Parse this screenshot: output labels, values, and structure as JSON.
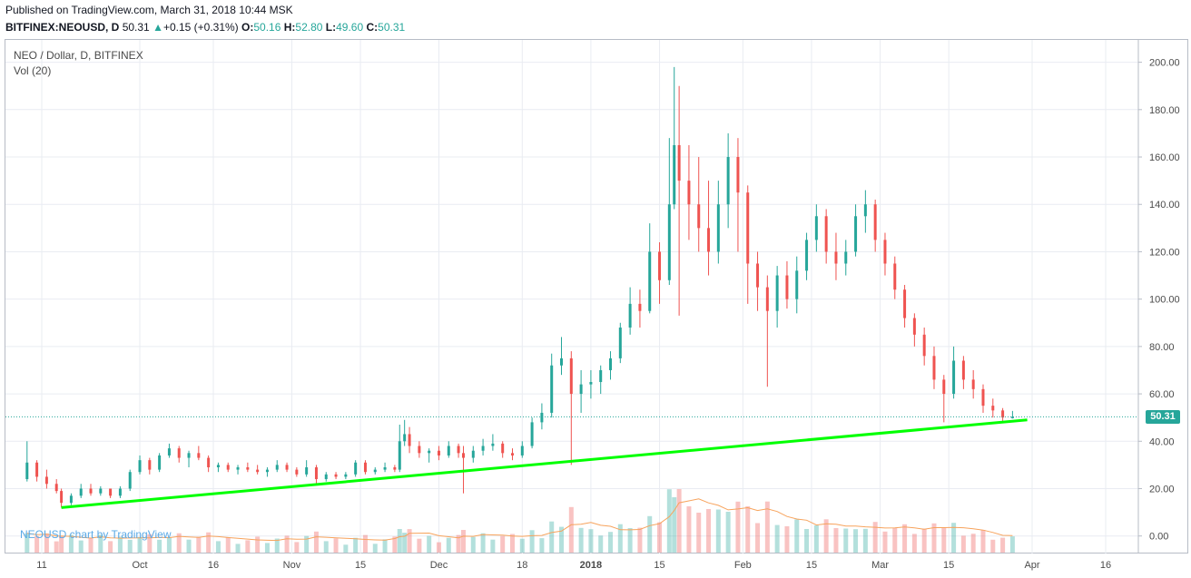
{
  "header": {
    "published": "Published on TradingView.com, March 31, 2018 10:44 MSK",
    "symbol": "BITFINEX:NEOUSD, D",
    "last": "50.31",
    "change_arrow": "▲",
    "change": "+0.15 (+0.31%)",
    "o_label": "O:",
    "o_value": "50.16",
    "h_label": "H:",
    "h_value": "52.80",
    "l_label": "L:",
    "l_value": "49.60",
    "c_label": "C:",
    "c_value": "50.31"
  },
  "legend": {
    "title": "NEO / Dollar, D, BITFINEX",
    "volume": "Vol (20)"
  },
  "watermark": "NEOUSD chart by TradingView",
  "last_price_tag": "50.31",
  "colors": {
    "up": "#26a69a",
    "down": "#ef5350",
    "trendline": "#00ff00",
    "vol_ma": "#f7a35c",
    "grid": "#e9ecf2"
  },
  "chart_data": {
    "type": "candlestick",
    "title": "NEO / Dollar, D, BITFINEX",
    "symbol": "BITFINEX:NEOUSD",
    "interval": "D",
    "y_axis": {
      "ticks": [
        "200.00",
        "180.00",
        "160.00",
        "140.00",
        "120.00",
        "100.00",
        "80.00",
        "60.00",
        "40.00",
        "20.00",
        "0.00"
      ],
      "range": [
        -7,
        208
      ],
      "position": "right"
    },
    "x_axis": {
      "ticks": [
        "11",
        "Oct",
        "16",
        "Nov",
        "15",
        "Dec",
        "18",
        "2018",
        "15",
        "Feb",
        "15",
        "Mar",
        "15",
        "Apr",
        "16"
      ],
      "tick_dates": [
        "2017-09-11",
        "2017-10-01",
        "2017-10-16",
        "2017-11-01",
        "2017-11-15",
        "2017-12-01",
        "2017-12-18",
        "2018-01-01",
        "2018-01-15",
        "2018-02-01",
        "2018-02-15",
        "2018-03-01",
        "2018-03-15",
        "2018-04-01",
        "2018-04-16"
      ]
    },
    "series": [
      {
        "type": "candlestick",
        "ohlc": [
          {
            "date": "2017-09-08",
            "o": 24,
            "h": 40,
            "l": 23,
            "c": 31
          },
          {
            "date": "2017-09-10",
            "o": 31,
            "h": 32,
            "l": 23,
            "c": 25
          },
          {
            "date": "2017-09-12",
            "o": 25,
            "h": 28,
            "l": 20,
            "c": 22
          },
          {
            "date": "2017-09-14",
            "o": 22,
            "h": 24,
            "l": 18,
            "c": 19
          },
          {
            "date": "2017-09-15",
            "o": 19,
            "h": 20,
            "l": 12,
            "c": 14
          },
          {
            "date": "2017-09-17",
            "o": 14,
            "h": 18,
            "l": 13,
            "c": 17
          },
          {
            "date": "2017-09-19",
            "o": 17,
            "h": 22,
            "l": 16,
            "c": 20
          },
          {
            "date": "2017-09-21",
            "o": 20,
            "h": 22,
            "l": 17,
            "c": 18
          },
          {
            "date": "2017-09-23",
            "o": 18,
            "h": 21,
            "l": 17,
            "c": 20
          },
          {
            "date": "2017-09-25",
            "o": 20,
            "h": 20,
            "l": 16,
            "c": 17
          },
          {
            "date": "2017-09-27",
            "o": 17,
            "h": 21,
            "l": 16,
            "c": 20
          },
          {
            "date": "2017-09-29",
            "o": 20,
            "h": 28,
            "l": 19,
            "c": 27
          },
          {
            "date": "2017-10-01",
            "o": 27,
            "h": 34,
            "l": 26,
            "c": 32
          },
          {
            "date": "2017-10-03",
            "o": 32,
            "h": 33,
            "l": 26,
            "c": 28
          },
          {
            "date": "2017-10-05",
            "o": 28,
            "h": 35,
            "l": 27,
            "c": 34
          },
          {
            "date": "2017-10-07",
            "o": 34,
            "h": 39,
            "l": 33,
            "c": 37
          },
          {
            "date": "2017-10-09",
            "o": 37,
            "h": 38,
            "l": 31,
            "c": 33
          },
          {
            "date": "2017-10-11",
            "o": 33,
            "h": 36,
            "l": 29,
            "c": 35
          },
          {
            "date": "2017-10-13",
            "o": 35,
            "h": 38,
            "l": 32,
            "c": 33
          },
          {
            "date": "2017-10-15",
            "o": 33,
            "h": 34,
            "l": 27,
            "c": 29
          },
          {
            "date": "2017-10-17",
            "o": 29,
            "h": 31,
            "l": 27,
            "c": 30
          },
          {
            "date": "2017-10-19",
            "o": 30,
            "h": 31,
            "l": 27,
            "c": 28
          },
          {
            "date": "2017-10-21",
            "o": 28,
            "h": 30,
            "l": 26,
            "c": 29
          },
          {
            "date": "2017-10-23",
            "o": 29,
            "h": 31,
            "l": 27,
            "c": 28
          },
          {
            "date": "2017-10-25",
            "o": 28,
            "h": 30,
            "l": 26,
            "c": 27
          },
          {
            "date": "2017-10-27",
            "o": 27,
            "h": 29,
            "l": 25,
            "c": 28
          },
          {
            "date": "2017-10-29",
            "o": 28,
            "h": 32,
            "l": 27,
            "c": 30
          },
          {
            "date": "2017-10-31",
            "o": 30,
            "h": 31,
            "l": 27,
            "c": 28
          },
          {
            "date": "2017-11-02",
            "o": 28,
            "h": 29,
            "l": 25,
            "c": 26
          },
          {
            "date": "2017-11-04",
            "o": 26,
            "h": 32,
            "l": 25,
            "c": 29
          },
          {
            "date": "2017-11-06",
            "o": 29,
            "h": 30,
            "l": 22,
            "c": 24
          },
          {
            "date": "2017-11-08",
            "o": 24,
            "h": 27,
            "l": 23,
            "c": 26
          },
          {
            "date": "2017-11-10",
            "o": 26,
            "h": 27,
            "l": 24,
            "c": 25
          },
          {
            "date": "2017-11-12",
            "o": 25,
            "h": 27,
            "l": 24,
            "c": 26
          },
          {
            "date": "2017-11-14",
            "o": 26,
            "h": 32,
            "l": 25,
            "c": 31
          },
          {
            "date": "2017-11-16",
            "o": 31,
            "h": 32,
            "l": 26,
            "c": 27
          },
          {
            "date": "2017-11-18",
            "o": 27,
            "h": 29,
            "l": 26,
            "c": 28
          },
          {
            "date": "2017-11-20",
            "o": 28,
            "h": 31,
            "l": 27,
            "c": 29
          },
          {
            "date": "2017-11-22",
            "o": 29,
            "h": 30,
            "l": 27,
            "c": 28
          },
          {
            "date": "2017-11-23",
            "o": 28,
            "h": 47,
            "l": 27,
            "c": 40
          },
          {
            "date": "2017-11-24",
            "o": 40,
            "h": 49,
            "l": 38,
            "c": 43
          },
          {
            "date": "2017-11-25",
            "o": 43,
            "h": 46,
            "l": 35,
            "c": 38
          },
          {
            "date": "2017-11-27",
            "o": 38,
            "h": 40,
            "l": 33,
            "c": 35
          },
          {
            "date": "2017-11-29",
            "o": 35,
            "h": 37,
            "l": 31,
            "c": 36
          },
          {
            "date": "2017-12-01",
            "o": 36,
            "h": 38,
            "l": 32,
            "c": 34
          },
          {
            "date": "2017-12-03",
            "o": 34,
            "h": 40,
            "l": 33,
            "c": 38
          },
          {
            "date": "2017-12-05",
            "o": 38,
            "h": 39,
            "l": 33,
            "c": 35
          },
          {
            "date": "2017-12-06",
            "o": 35,
            "h": 38,
            "l": 18,
            "c": 33
          },
          {
            "date": "2017-12-08",
            "o": 33,
            "h": 38,
            "l": 31,
            "c": 36
          },
          {
            "date": "2017-12-10",
            "o": 36,
            "h": 41,
            "l": 34,
            "c": 38
          },
          {
            "date": "2017-12-12",
            "o": 38,
            "h": 43,
            "l": 36,
            "c": 39
          },
          {
            "date": "2017-12-14",
            "o": 39,
            "h": 40,
            "l": 33,
            "c": 35
          },
          {
            "date": "2017-12-16",
            "o": 35,
            "h": 37,
            "l": 32,
            "c": 34
          },
          {
            "date": "2017-12-18",
            "o": 34,
            "h": 40,
            "l": 33,
            "c": 38
          },
          {
            "date": "2017-12-20",
            "o": 38,
            "h": 50,
            "l": 37,
            "c": 48
          },
          {
            "date": "2017-12-22",
            "o": 48,
            "h": 56,
            "l": 45,
            "c": 52
          },
          {
            "date": "2017-12-24",
            "o": 52,
            "h": 77,
            "l": 50,
            "c": 72
          },
          {
            "date": "2017-12-26",
            "o": 72,
            "h": 84,
            "l": 68,
            "c": 75
          },
          {
            "date": "2017-12-28",
            "o": 75,
            "h": 78,
            "l": 30,
            "c": 60
          },
          {
            "date": "2017-12-30",
            "o": 60,
            "h": 70,
            "l": 52,
            "c": 64
          },
          {
            "date": "2018-01-01",
            "o": 64,
            "h": 70,
            "l": 58,
            "c": 65
          },
          {
            "date": "2018-01-03",
            "o": 65,
            "h": 72,
            "l": 60,
            "c": 70
          },
          {
            "date": "2018-01-05",
            "o": 70,
            "h": 78,
            "l": 66,
            "c": 75
          },
          {
            "date": "2018-01-07",
            "o": 75,
            "h": 90,
            "l": 73,
            "c": 88
          },
          {
            "date": "2018-01-09",
            "o": 88,
            "h": 105,
            "l": 85,
            "c": 98
          },
          {
            "date": "2018-01-11",
            "o": 98,
            "h": 104,
            "l": 88,
            "c": 95
          },
          {
            "date": "2018-01-13",
            "o": 95,
            "h": 132,
            "l": 94,
            "c": 120
          },
          {
            "date": "2018-01-15",
            "o": 120,
            "h": 124,
            "l": 98,
            "c": 108
          },
          {
            "date": "2018-01-17",
            "o": 108,
            "h": 168,
            "l": 106,
            "c": 140
          },
          {
            "date": "2018-01-18",
            "o": 140,
            "h": 198,
            "l": 138,
            "c": 165
          },
          {
            "date": "2018-01-19",
            "o": 165,
            "h": 190,
            "l": 93,
            "c": 150
          },
          {
            "date": "2018-01-21",
            "o": 150,
            "h": 165,
            "l": 125,
            "c": 140
          },
          {
            "date": "2018-01-23",
            "o": 140,
            "h": 160,
            "l": 120,
            "c": 130
          },
          {
            "date": "2018-01-25",
            "o": 130,
            "h": 150,
            "l": 110,
            "c": 120
          },
          {
            "date": "2018-01-27",
            "o": 120,
            "h": 150,
            "l": 115,
            "c": 140
          },
          {
            "date": "2018-01-29",
            "o": 140,
            "h": 170,
            "l": 130,
            "c": 160
          },
          {
            "date": "2018-01-31",
            "o": 160,
            "h": 168,
            "l": 120,
            "c": 145
          },
          {
            "date": "2018-02-02",
            "o": 145,
            "h": 148,
            "l": 98,
            "c": 115
          },
          {
            "date": "2018-02-04",
            "o": 115,
            "h": 120,
            "l": 95,
            "c": 105
          },
          {
            "date": "2018-02-06",
            "o": 105,
            "h": 110,
            "l": 63,
            "c": 95
          },
          {
            "date": "2018-02-08",
            "o": 95,
            "h": 114,
            "l": 88,
            "c": 110
          },
          {
            "date": "2018-02-10",
            "o": 110,
            "h": 116,
            "l": 96,
            "c": 100
          },
          {
            "date": "2018-02-12",
            "o": 100,
            "h": 118,
            "l": 94,
            "c": 112
          },
          {
            "date": "2018-02-14",
            "o": 112,
            "h": 128,
            "l": 108,
            "c": 125
          },
          {
            "date": "2018-02-16",
            "o": 125,
            "h": 140,
            "l": 120,
            "c": 135
          },
          {
            "date": "2018-02-18",
            "o": 135,
            "h": 138,
            "l": 115,
            "c": 120
          },
          {
            "date": "2018-02-20",
            "o": 120,
            "h": 128,
            "l": 108,
            "c": 115
          },
          {
            "date": "2018-02-22",
            "o": 115,
            "h": 125,
            "l": 110,
            "c": 120
          },
          {
            "date": "2018-02-24",
            "o": 120,
            "h": 140,
            "l": 118,
            "c": 135
          },
          {
            "date": "2018-02-26",
            "o": 135,
            "h": 146,
            "l": 128,
            "c": 140
          },
          {
            "date": "2018-02-28",
            "o": 140,
            "h": 142,
            "l": 120,
            "c": 125
          },
          {
            "date": "2018-03-02",
            "o": 125,
            "h": 128,
            "l": 110,
            "c": 115
          },
          {
            "date": "2018-03-04",
            "o": 115,
            "h": 118,
            "l": 100,
            "c": 104
          },
          {
            "date": "2018-03-06",
            "o": 104,
            "h": 106,
            "l": 88,
            "c": 92
          },
          {
            "date": "2018-03-08",
            "o": 92,
            "h": 94,
            "l": 80,
            "c": 85
          },
          {
            "date": "2018-03-10",
            "o": 85,
            "h": 88,
            "l": 72,
            "c": 76
          },
          {
            "date": "2018-03-12",
            "o": 76,
            "h": 80,
            "l": 62,
            "c": 66
          },
          {
            "date": "2018-03-14",
            "o": 66,
            "h": 68,
            "l": 48,
            "c": 60
          },
          {
            "date": "2018-03-16",
            "o": 60,
            "h": 80,
            "l": 58,
            "c": 74
          },
          {
            "date": "2018-03-18",
            "o": 74,
            "h": 76,
            "l": 62,
            "c": 66
          },
          {
            "date": "2018-03-20",
            "o": 66,
            "h": 70,
            "l": 58,
            "c": 62
          },
          {
            "date": "2018-03-22",
            "o": 62,
            "h": 64,
            "l": 52,
            "c": 55
          },
          {
            "date": "2018-03-24",
            "o": 55,
            "h": 58,
            "l": 50,
            "c": 53
          },
          {
            "date": "2018-03-26",
            "o": 53,
            "h": 54,
            "l": 48,
            "c": 50
          },
          {
            "date": "2018-03-28",
            "o": 50,
            "h": 52.8,
            "l": 49.6,
            "c": 50.31
          }
        ]
      },
      {
        "type": "trendline",
        "points": [
          {
            "date": "2017-09-15",
            "value": 12
          },
          {
            "date": "2018-03-31",
            "value": 49
          }
        ]
      },
      {
        "type": "dotted-line",
        "value": 50.31
      }
    ]
  }
}
